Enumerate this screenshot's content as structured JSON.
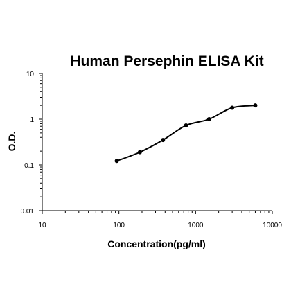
{
  "chart_data": {
    "type": "scatter",
    "title": "Human Persephin ELISA Kit",
    "xlabel": "Concentration(pg/ml)",
    "ylabel": "O.D.",
    "xscale": "log",
    "yscale": "log",
    "xlim": [
      10,
      10000
    ],
    "ylim": [
      0.01,
      10
    ],
    "xticks": [
      10,
      100,
      1000,
      10000
    ],
    "xtick_labels": [
      "10",
      "100",
      "1000",
      "10000"
    ],
    "yticks": [
      0.01,
      0.1,
      1,
      10
    ],
    "ytick_labels": [
      "0.01",
      "0.1",
      "1",
      "10"
    ],
    "grid": false,
    "legend": "none",
    "colors": {
      "points": "#000000",
      "curve": "#000000",
      "axes": "#000000"
    },
    "series": [
      {
        "x": [
          93.75,
          187.5,
          375,
          750,
          1500,
          3000,
          6000
        ],
        "y": [
          0.122,
          0.19,
          0.35,
          0.73,
          1.0,
          1.78,
          2.0
        ],
        "fit_curve": true
      }
    ]
  }
}
